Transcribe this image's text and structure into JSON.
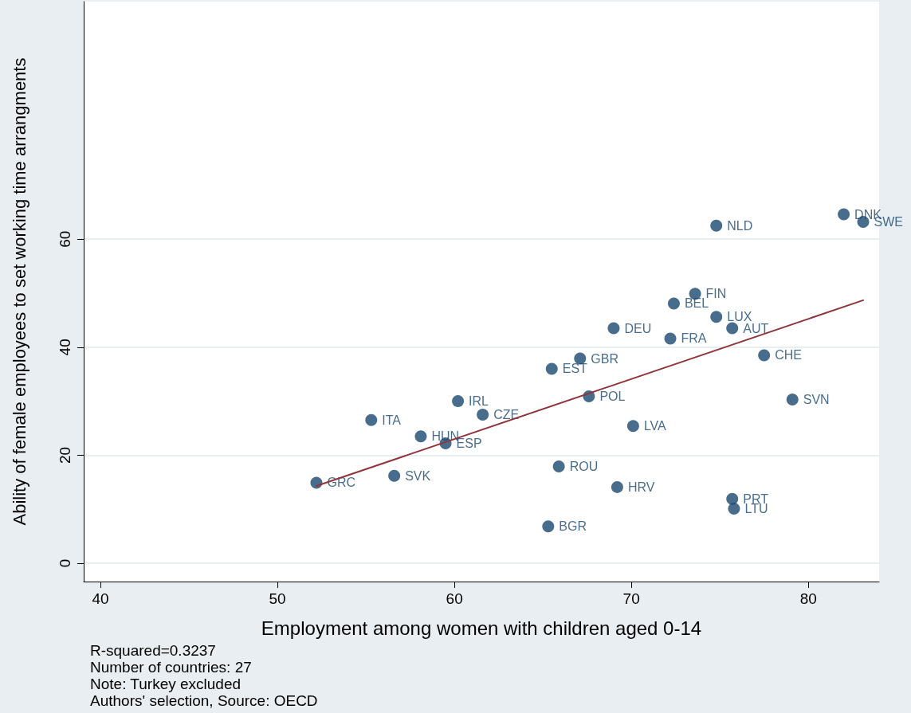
{
  "chart_data": {
    "type": "scatter",
    "xlabel": "Employment among women with children aged 0-14",
    "ylabel": "Ability of female employees to set working time arrangments",
    "xlim": [
      39.05,
      84
    ],
    "ylim": [
      -3.4,
      104
    ],
    "xticks": [
      40,
      50,
      60,
      70,
      80
    ],
    "yticks": [
      0,
      20,
      40,
      60
    ],
    "grid": "y",
    "marker": "circle",
    "annotations": [
      "R-squared=0.3237",
      "Number of countries: 27",
      "Note: Turkey excluded",
      "Authors' selection, Source: OECD"
    ],
    "series": [
      {
        "color": "#1a476f",
        "x": [
          52.2,
          56.6,
          55.3,
          58.1,
          59.5,
          60.2,
          61.6,
          65.5,
          67.1,
          67.6,
          65.9,
          65.3,
          69.2,
          70.1,
          69.0,
          72.2,
          72.4,
          73.6,
          74.8,
          74.8,
          75.7,
          77.5,
          79.1,
          75.7,
          75.8,
          82.0,
          83.1
        ],
        "values": [
          14.9,
          16.2,
          26.5,
          23.5,
          22.2,
          30.0,
          27.5,
          36.0,
          37.9,
          30.9,
          17.9,
          6.8,
          14.1,
          25.4,
          43.5,
          41.6,
          48.1,
          49.9,
          45.6,
          62.5,
          43.5,
          38.5,
          30.3,
          11.9,
          10.1,
          64.6,
          63.2
        ],
        "value_labels": [
          "GRC",
          "SVK",
          "ITA",
          "HUN",
          "ESP",
          "IRL",
          "CZE",
          "EST",
          "GBR",
          "POL",
          "ROU",
          "BGR",
          "HRV",
          "LVA",
          "DEU",
          "FRA",
          "BEL",
          "FIN",
          "LUX",
          "NLD",
          "AUT",
          "CHE",
          "SVN",
          "PRT",
          "LTU",
          "DNK",
          "SWE"
        ]
      },
      {
        "type": "line",
        "color": "#90353b",
        "x": [
          52.2,
          83.1
        ],
        "values": [
          14.3,
          48.7
        ],
        "marker": "none"
      }
    ]
  }
}
